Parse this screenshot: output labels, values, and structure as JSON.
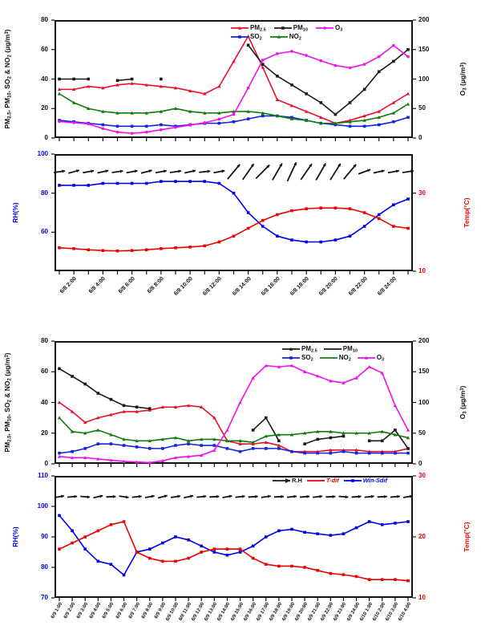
{
  "figure": {
    "background": "#ffffff",
    "description": "Two stacked two-panel time-series figures: pollutant concentrations (PM2.5, PM10, SO2, NO2, O3) above meteorology (RH, Temp, wind arrows)"
  },
  "colors": {
    "pm25_red": "#e8112d",
    "pm10_black": "#1a1a1a",
    "so2_blue": "#1226dd",
    "no2_green": "#0b7d0b",
    "o3_magenta": "#ee11ee",
    "rh_blue": "#0000ee",
    "temp_red": "#ee0000",
    "axis_black": "#111111"
  },
  "chart_data": [
    {
      "id": "jun8-pollutants",
      "type": "line",
      "n": 25,
      "ylabel_left": [
        {
          "t": "PM"
        },
        {
          "sub": "2.5"
        },
        {
          "t": ", PM"
        },
        {
          "sub": "10"
        },
        {
          "t": ", SO"
        },
        {
          "sub": "2"
        },
        {
          "t": " & NO"
        },
        {
          "sub": "2"
        },
        {
          "t": " (μg/m"
        },
        {
          "sup": "3"
        },
        {
          "t": ")"
        }
      ],
      "ylabel_right": [
        {
          "t": "O"
        },
        {
          "sub": "3"
        },
        {
          "t": " (μg/m"
        },
        {
          "sup": "3"
        },
        {
          "t": ")"
        }
      ],
      "axis_left": {
        "min": 0,
        "max": 80,
        "ticks": [
          80,
          60,
          40,
          20,
          0
        ],
        "color": "#111111"
      },
      "axis_right": {
        "min": 0,
        "max": 200,
        "ticks": [
          200,
          150,
          100,
          50,
          0
        ],
        "color": "#111111"
      },
      "series": [
        {
          "name": "PM2.5",
          "axis": "L",
          "color": "#e8112d",
          "marker": "tri",
          "values": [
            33,
            33,
            35,
            34,
            36,
            37,
            36,
            35,
            34,
            32,
            30,
            35,
            52,
            69,
            48,
            26,
            22,
            18,
            14,
            10,
            12,
            15,
            18,
            24,
            30
          ]
        },
        {
          "name": "PM10",
          "axis": "L",
          "color": "#1a1a1a",
          "marker": "sq",
          "values": [
            40,
            40,
            40,
            null,
            39,
            40,
            null,
            40,
            null,
            null,
            null,
            null,
            null,
            63,
            50,
            42,
            36,
            30,
            24,
            16,
            24,
            33,
            45,
            52,
            60
          ]
        },
        {
          "name": "SO2",
          "axis": "L",
          "color": "#1226dd",
          "marker": "sq",
          "values": [
            12,
            11,
            10,
            9,
            8,
            8,
            8,
            9,
            8,
            9,
            10,
            10,
            11,
            13,
            15,
            15,
            14,
            12,
            10,
            9,
            8,
            8,
            9,
            11,
            14
          ]
        },
        {
          "name": "NO2",
          "axis": "L",
          "color": "#0b7d0b",
          "marker": "tri",
          "values": [
            30,
            24,
            20,
            18,
            17,
            17,
            17,
            18,
            20,
            18,
            17,
            17,
            18,
            18,
            17,
            15,
            13,
            12,
            10,
            10,
            11,
            12,
            14,
            17,
            23
          ]
        },
        {
          "name": "O3",
          "axis": "R",
          "color": "#ee11ee",
          "marker": "dot",
          "values": [
            28,
            26,
            24,
            16,
            10,
            8,
            10,
            14,
            18,
            22,
            26,
            32,
            40,
            85,
            132,
            143,
            147,
            140,
            131,
            123,
            119,
            125,
            138,
            157,
            138
          ]
        }
      ],
      "legend_rows": [
        [
          {
            "parts": [
              {
                "t": "PM"
              },
              {
                "sub": "2.5"
              }
            ],
            "color": "#e8112d",
            "marker": "tri"
          },
          {
            "parts": [
              {
                "t": "PM"
              },
              {
                "sub": "10"
              }
            ],
            "color": "#1a1a1a",
            "marker": "sq"
          },
          {
            "parts": [
              {
                "t": "O"
              },
              {
                "sub": "3"
              }
            ],
            "color": "#ee11ee",
            "marker": "dot"
          }
        ],
        [
          {
            "parts": [
              {
                "t": "SO"
              },
              {
                "sub": "2"
              }
            ],
            "color": "#1226dd",
            "marker": "sq"
          },
          {
            "parts": [
              {
                "t": "NO"
              },
              {
                "sub": "2"
              }
            ],
            "color": "#0b7d0b",
            "marker": "tri"
          }
        ]
      ]
    },
    {
      "id": "jun8-meteorology",
      "type": "line",
      "n": 25,
      "ylabel_left": [
        {
          "t": "RH(%)"
        }
      ],
      "ylabel_right": [
        {
          "t": "Temp(°C)"
        }
      ],
      "axis_left": {
        "min": 40,
        "max": 100,
        "ticks": [
          100,
          80,
          60
        ],
        "color": "#0000ee"
      },
      "axis_right": {
        "min": 10,
        "max": 40,
        "ticks": [
          30,
          10
        ],
        "color": "#ee0000"
      },
      "series": [
        {
          "name": "RH",
          "axis": "L",
          "color": "#0000ee",
          "marker": "sq",
          "values": [
            84,
            84,
            84,
            85,
            85,
            85,
            85,
            86,
            86,
            86,
            86,
            85,
            80,
            70,
            63,
            58,
            56,
            55,
            55,
            56,
            58,
            63,
            69,
            74,
            77
          ]
        },
        {
          "name": "Temp",
          "axis": "R",
          "color": "#ee0000",
          "marker": "sq",
          "values": [
            16,
            15.8,
            15.5,
            15.3,
            15.2,
            15.3,
            15.5,
            15.8,
            16,
            16.2,
            16.5,
            17.5,
            19,
            21,
            23,
            24.5,
            25.5,
            26,
            26.2,
            26.2,
            26,
            25,
            23.5,
            21.5,
            21
          ]
        }
      ],
      "wind": {
        "angles": [
          8,
          15,
          10,
          12,
          8,
          10,
          14,
          10,
          8,
          12,
          6,
          10,
          50,
          55,
          45,
          60,
          65,
          55,
          60,
          58,
          50,
          20,
          12,
          10,
          8
        ],
        "lens": [
          7,
          7,
          7,
          7,
          7,
          7,
          7,
          7,
          7,
          7,
          7,
          7,
          12,
          12,
          12,
          12,
          13,
          12,
          12,
          12,
          12,
          8,
          7,
          7,
          7
        ]
      },
      "x_labels": [
        "6/8 2:00",
        "6/8 4:00",
        "6/8 6:00",
        "6/8 8:00",
        "6/8 10:00",
        "6/8 12:00",
        "6/8 14:00",
        "6/8 16:00",
        "6/8 18:00",
        "6/8 20:00",
        "6/8 22:00",
        "6/8 24:00"
      ],
      "x_label_idx": [
        1,
        3,
        5,
        7,
        9,
        11,
        13,
        15,
        17,
        19,
        21,
        23
      ]
    },
    {
      "id": "day2-pollutants",
      "type": "line",
      "n": 28,
      "ylabel_left": [
        {
          "t": "PM"
        },
        {
          "sub": "2.5"
        },
        {
          "t": ", PM"
        },
        {
          "sub": "10"
        },
        {
          "t": ", SO"
        },
        {
          "sub": "2"
        },
        {
          "t": " & NO"
        },
        {
          "sub": "2"
        },
        {
          "t": " (μg/m"
        },
        {
          "sup": "3"
        },
        {
          "t": ")"
        }
      ],
      "ylabel_right": [
        {
          "t": "O"
        },
        {
          "sub": "3"
        },
        {
          "t": " (μg/m"
        },
        {
          "sup": "3"
        },
        {
          "t": ")"
        }
      ],
      "axis_left": {
        "min": 0,
        "max": 80,
        "ticks": [
          80,
          60,
          40,
          20,
          0
        ],
        "color": "#111111"
      },
      "axis_right": {
        "min": 0,
        "max": 200,
        "ticks": [
          200,
          150,
          100,
          50,
          0
        ],
        "color": "#111111"
      },
      "series": [
        {
          "name": "PM2.5",
          "axis": "L",
          "color": "#e8112d",
          "marker": "tri",
          "values": [
            40,
            34,
            27,
            30,
            32,
            34,
            34,
            35,
            37,
            37,
            38,
            37,
            30,
            15,
            13,
            13,
            14,
            12,
            8,
            8,
            8,
            9,
            9,
            9,
            8,
            8,
            8,
            10
          ]
        },
        {
          "name": "PM10",
          "axis": "L",
          "color": "#1a1a1a",
          "marker": "sq",
          "values": [
            62,
            57,
            52,
            46,
            42,
            38,
            37,
            36,
            null,
            null,
            null,
            null,
            null,
            null,
            null,
            22,
            30,
            15,
            null,
            13,
            16,
            17,
            18,
            null,
            15,
            15,
            22,
            10
          ]
        },
        {
          "name": "SO2",
          "axis": "L",
          "color": "#1226dd",
          "marker": "sq",
          "values": [
            7,
            8,
            10,
            13,
            13,
            12,
            11,
            10,
            10,
            12,
            13,
            12,
            12,
            10,
            8,
            10,
            10,
            10,
            8,
            7,
            7,
            7,
            8,
            7,
            7,
            7,
            7,
            7
          ]
        },
        {
          "name": "NO2",
          "axis": "L",
          "color": "#0b7d0b",
          "marker": "tri",
          "values": [
            30,
            21,
            20,
            22,
            19,
            16,
            15,
            15,
            16,
            17,
            15,
            16,
            16,
            15,
            15,
            14,
            18,
            19,
            19,
            20,
            21,
            21,
            20,
            20,
            20,
            21,
            19,
            17
          ]
        },
        {
          "name": "O3",
          "axis": "R",
          "color": "#ee11ee",
          "marker": "tri",
          "values": [
            12,
            10,
            10,
            8,
            6,
            4,
            3,
            2,
            5,
            10,
            12,
            14,
            22,
            55,
            100,
            140,
            160,
            158,
            160,
            150,
            143,
            135,
            132,
            140,
            158,
            148,
            95,
            55
          ]
        }
      ],
      "legend_rows": [
        [
          {
            "parts": [
              {
                "t": "PM"
              },
              {
                "sub": "2.5"
              }
            ],
            "color": "#1a1a1a",
            "marker": "tri"
          },
          {
            "parts": [
              {
                "t": "PM"
              },
              {
                "sub": "10"
              }
            ],
            "color": "#1a1a1a",
            "marker": "none"
          }
        ],
        [
          {
            "parts": [
              {
                "t": "SO"
              },
              {
                "sub": "2"
              }
            ],
            "color": "#1226dd",
            "marker": "sq"
          },
          {
            "parts": [
              {
                "t": "NO"
              },
              {
                "sub": "2"
              }
            ],
            "color": "#0b7d0b",
            "marker": "none"
          },
          {
            "parts": [
              {
                "t": "O"
              },
              {
                "sub": "3"
              }
            ],
            "color": "#ee11ee",
            "marker": "tri"
          }
        ]
      ]
    },
    {
      "id": "day2-meteorology",
      "type": "line",
      "n": 28,
      "ylabel_left": [
        {
          "t": "RH(%)"
        }
      ],
      "ylabel_right": [
        {
          "t": "Temp(°C)"
        }
      ],
      "axis_left": {
        "min": 70,
        "max": 110,
        "ticks": [
          110,
          100,
          90,
          80,
          70
        ],
        "color": "#0000ee"
      },
      "axis_right": {
        "min": 10,
        "max": 30,
        "ticks": [
          30,
          20,
          10
        ],
        "color": "#ee0000"
      },
      "series": [
        {
          "name": "RH",
          "axis": "L",
          "color": "#0000ee",
          "marker": "sq",
          "values": [
            97,
            92,
            86,
            82,
            81,
            77.5,
            85,
            86,
            88,
            90,
            89,
            87,
            85,
            84,
            85,
            87,
            90,
            92,
            92.5,
            91.5,
            91,
            90.5,
            91,
            93,
            95,
            94,
            94.5,
            95
          ]
        },
        {
          "name": "Temp",
          "axis": "R",
          "color": "#ee0000",
          "marker": "sq",
          "values": [
            18,
            19,
            20,
            21,
            22,
            22.5,
            17.5,
            16.5,
            16,
            16,
            16.5,
            17.5,
            18,
            18,
            18,
            16.5,
            15.5,
            15.2,
            15.2,
            15,
            14.5,
            14,
            13.8,
            13.5,
            13,
            13,
            13,
            12.8
          ]
        }
      ],
      "wind": {
        "angles": [
          10,
          5,
          -5,
          12,
          3,
          -8,
          6,
          10,
          14,
          8,
          12,
          6,
          3,
          10,
          6,
          4,
          8,
          3,
          6,
          4,
          6,
          3,
          -5,
          4,
          6,
          3,
          5,
          8
        ],
        "lens": [
          6,
          6,
          6,
          6,
          6,
          6,
          6,
          6,
          6,
          6,
          6,
          6,
          6,
          6,
          6,
          6,
          6,
          6,
          6,
          6,
          6,
          6,
          6,
          6,
          6,
          6,
          6,
          6
        ]
      },
      "legend_rows": [
        [
          {
            "parts": [
              {
                "t": "R.H"
              }
            ],
            "color": "#1a1a1a",
            "marker": "arrow"
          },
          {
            "parts": [
              {
                "t": "T-dif"
              }
            ],
            "color": "#ee0000",
            "marker": "line",
            "italic": true,
            "colored_text": true
          },
          {
            "parts": [
              {
                "t": "Win-Sdif"
              }
            ],
            "color": "#0000ee",
            "marker": "sq",
            "italic": true,
            "colored_text": true
          }
        ]
      ],
      "x_labels": [
        "6/9 1:00",
        "6/9 2:00",
        "6/9 3:00",
        "6/9 4:00",
        "6/9 5:00",
        "6/9 6:00",
        "6/9 7:00",
        "6/9 8:00",
        "6/9 9:00",
        "6/9 10:00",
        "6/9 11:00",
        "6/9 12:00",
        "6/9 13:00",
        "6/9 14:00",
        "6/9 15:00",
        "6/9 16:00",
        "6/9 17:00",
        "6/9 18:00",
        "6/9 19:00",
        "6/9 20:00",
        "6/9 21:00",
        "6/9 22:00",
        "6/9 23:00",
        "6/9 24:00",
        "6/10 1:00",
        "6/10 2:00",
        "6/10 3:00",
        "6/10 4:00"
      ],
      "x_label_idx": [
        0,
        1,
        2,
        3,
        4,
        5,
        6,
        7,
        8,
        9,
        10,
        11,
        12,
        13,
        14,
        15,
        16,
        17,
        18,
        19,
        20,
        21,
        22,
        23,
        24,
        25,
        26,
        27
      ]
    }
  ]
}
